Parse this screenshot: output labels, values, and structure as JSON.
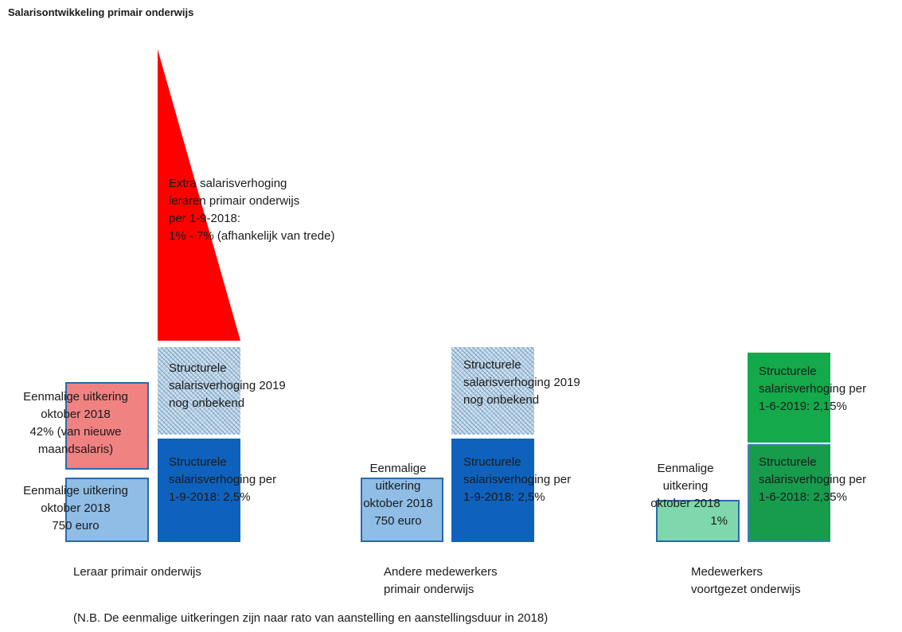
{
  "title": "Salarisontwikkeling primair onderwijs",
  "footnote": "(N.B. De eenmalige uitkeringen zijn naar rato van aanstelling en aanstellingsduur in 2018)",
  "colors": {
    "red": "#ff0000",
    "dark_blue": "#0e62bd",
    "light_blue": "#8fbde6",
    "pink": "#f08282",
    "hatched_blue": "#b9d3e7",
    "dark_green": "#14a94a",
    "light_green": "#7fd7ad"
  },
  "groups": [
    {
      "label": "Leraar primair onderwijs",
      "extra": {
        "lines": [
          "Extra salarisverhoging",
          "leraren primair onderwijs",
          "per 1-9-2018:",
          "1% - 7% (afhankelijk van trede)"
        ]
      },
      "structural_2019": {
        "lines": [
          "Structurele",
          "salarisverhoging 2019",
          "nog onbekend"
        ]
      },
      "structural_2018": {
        "lines": [
          "Structurele",
          "salarisverhoging per",
          "1-9-2018: 2,5%"
        ]
      },
      "once_pct": {
        "lines": [
          "Eenmalige uitkering",
          "oktober 2018",
          "42% (van nieuwe",
          "maandsalaris)"
        ]
      },
      "once_euro": {
        "lines": [
          "Eenmalige uitkering",
          "oktober 2018",
          "750 euro"
        ]
      }
    },
    {
      "label_lines": [
        "Andere medewerkers",
        "primair onderwijs"
      ],
      "structural_2019": {
        "lines": [
          "Structurele",
          "salarisverhoging 2019",
          "nog onbekend"
        ]
      },
      "structural_2018": {
        "lines": [
          "Structurele",
          "salarisverhoging per",
          "1-9-2018: 2,5%"
        ]
      },
      "once_euro": {
        "lines": [
          "Eenmalige",
          "uitkering",
          "oktober 2018",
          "750 euro"
        ]
      }
    },
    {
      "label_lines": [
        "Medewerkers",
        "voortgezet onderwijs"
      ],
      "structural_2019": {
        "lines": [
          "Structurele",
          "salarisverhoging per",
          "1-6-2019: 2,15%"
        ]
      },
      "structural_2018": {
        "lines": [
          "Structurele",
          "salarisverhoging per",
          "1-6-2018: 2,35%"
        ]
      },
      "once_pct": {
        "lines": [
          "Eenmalige",
          "uitkering",
          "oktober 2018",
          "1%"
        ]
      }
    }
  ]
}
